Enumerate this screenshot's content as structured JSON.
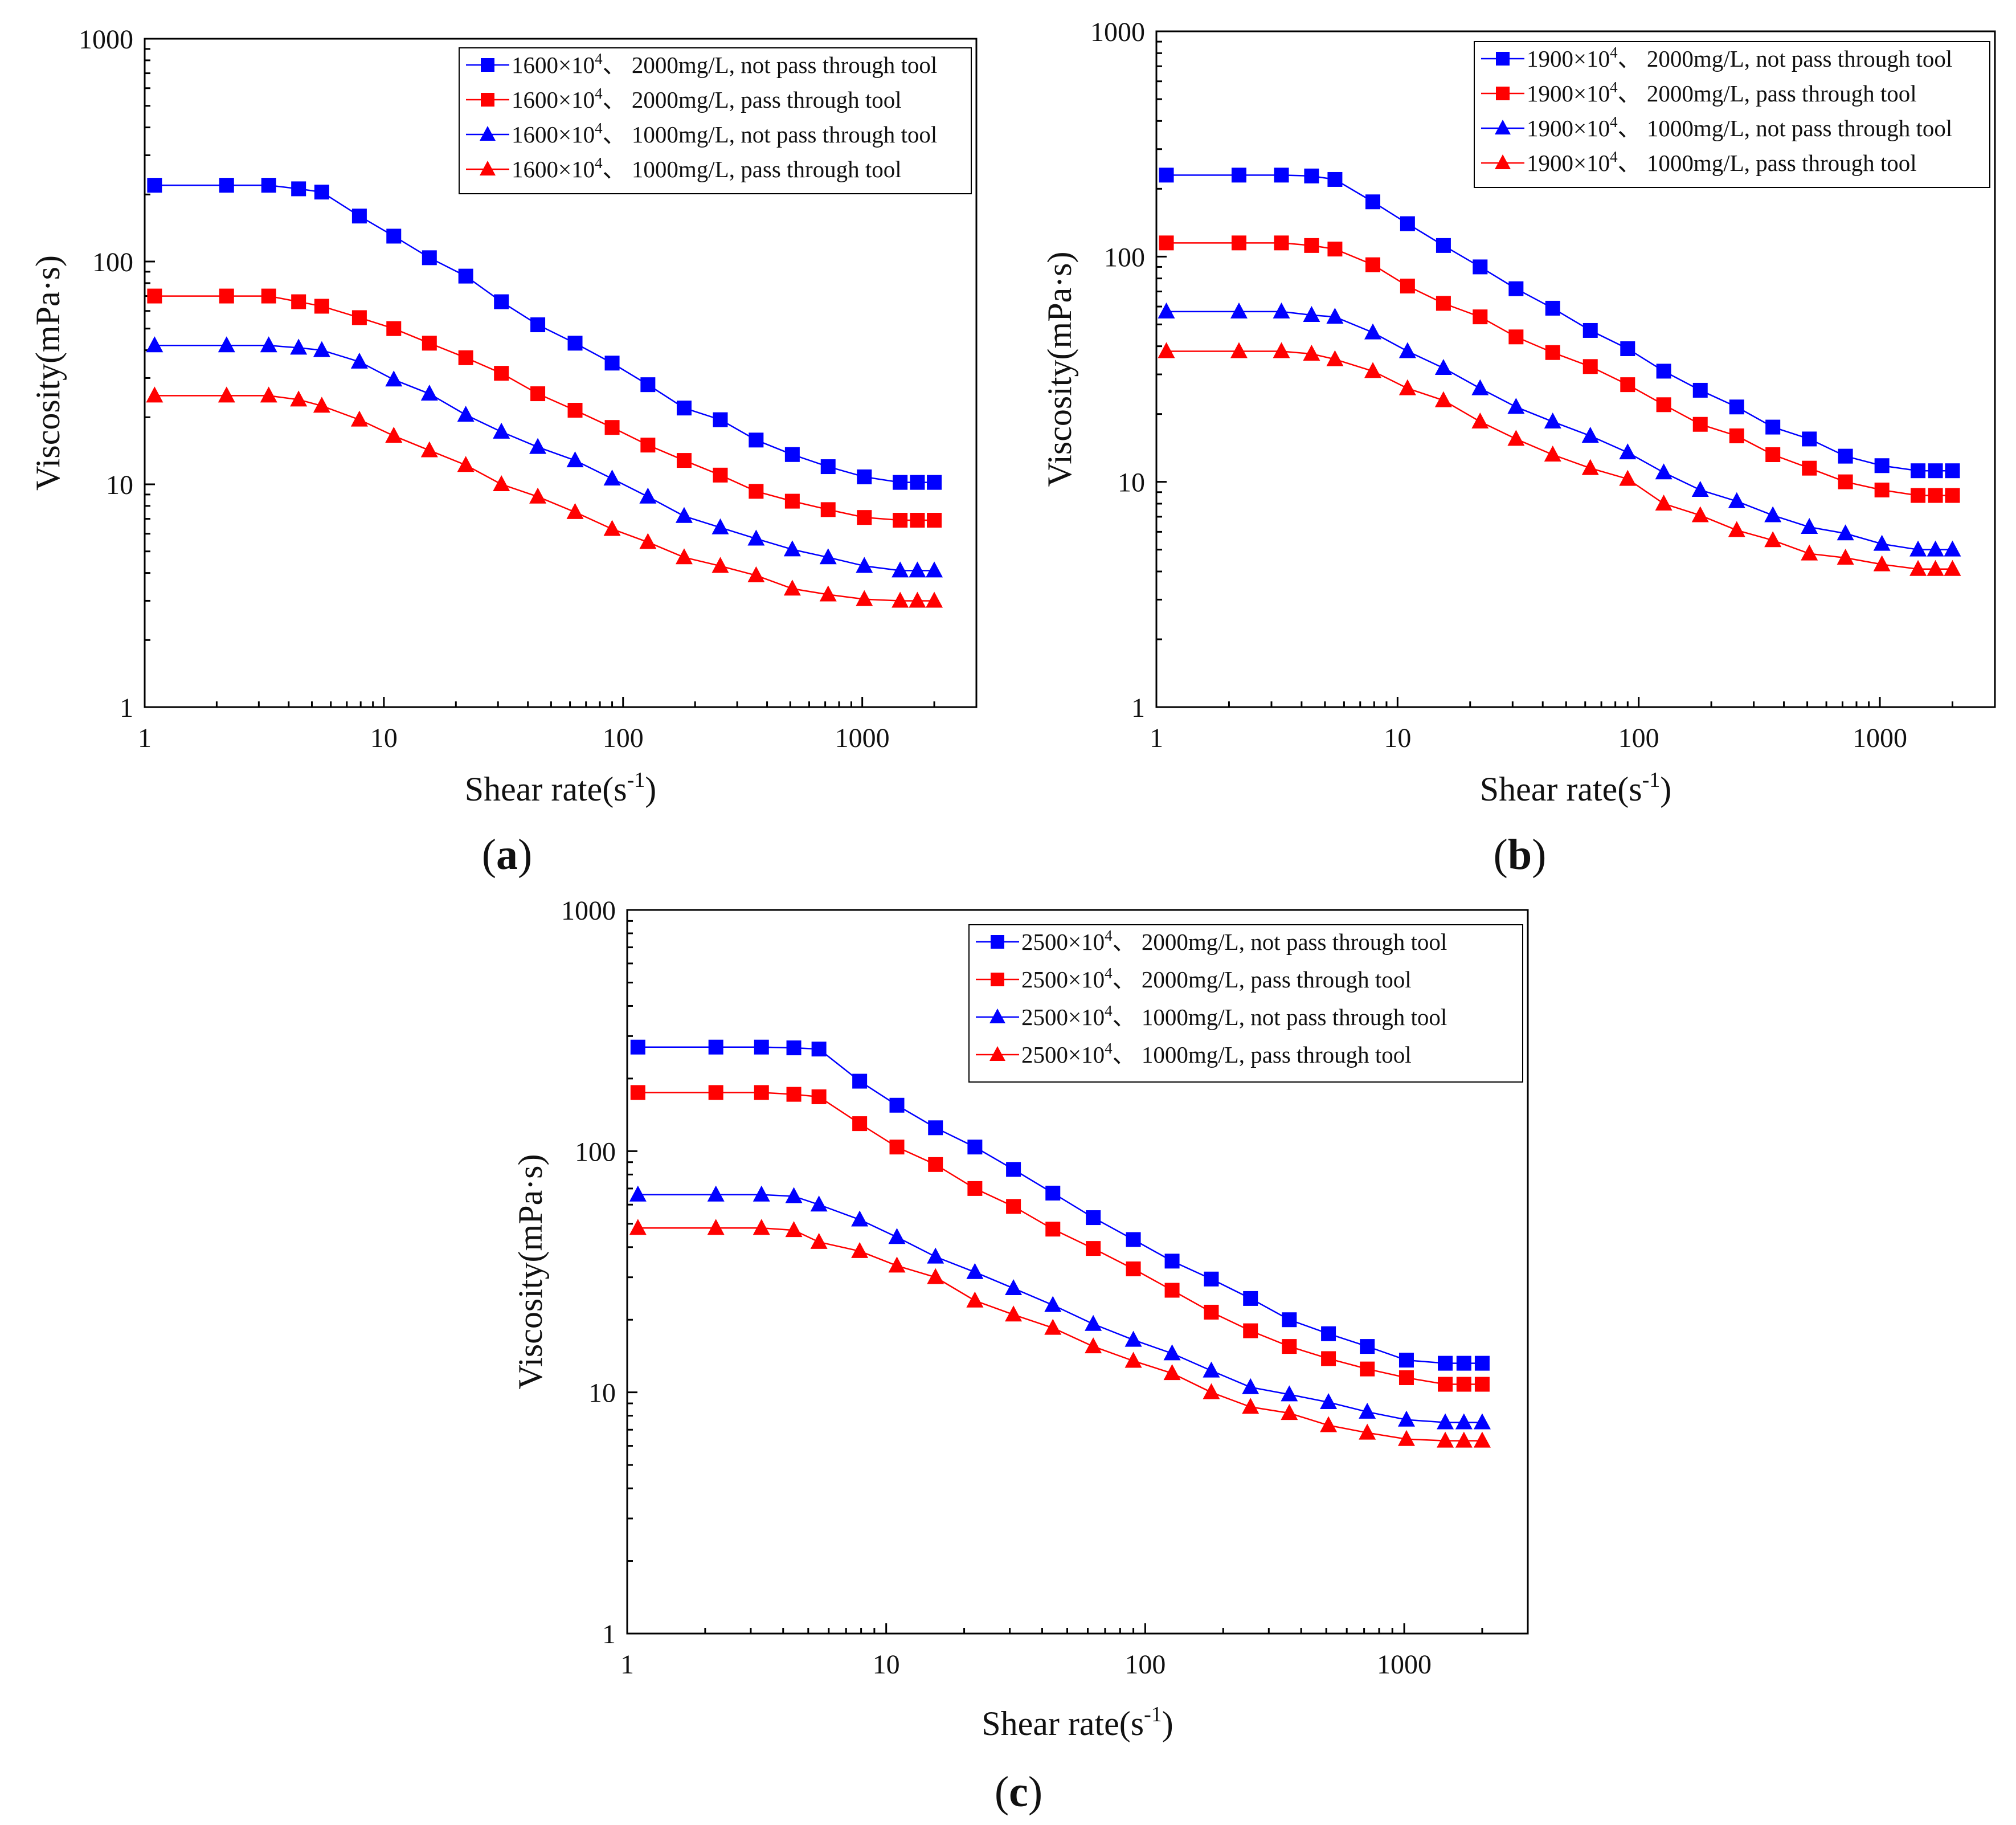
{
  "figure": {
    "panels": [
      {
        "id": "a",
        "label_open": "(",
        "label": "a",
        "label_close": ")",
        "xlabel": "Shear rate(s",
        "xlabel_sup": "-1",
        "xlabel_close": ")",
        "ylabel": "Viscosity(mPa·s)",
        "x_ticks": [
          "1",
          "10",
          "100",
          "1000"
        ],
        "y_ticks": [
          "1",
          "10",
          "100",
          "1000"
        ]
      },
      {
        "id": "b",
        "label_open": "(",
        "label": "b",
        "label_close": ")",
        "xlabel": "Shear rate(s",
        "xlabel_sup": "-1",
        "xlabel_close": ")",
        "ylabel": "Viscosity(mPa·s)",
        "x_ticks": [
          "1",
          "10",
          "100",
          "1000"
        ],
        "y_ticks": [
          "1",
          "10",
          "100",
          "1000"
        ]
      },
      {
        "id": "c",
        "label_open": "(",
        "label": "c",
        "label_close": ")",
        "xlabel": "Shear rate(s",
        "xlabel_sup": "-1",
        "xlabel_close": ")",
        "ylabel": "Viscosity(mPa·s)",
        "x_ticks": [
          "1",
          "10",
          "100",
          "1000"
        ],
        "y_ticks": [
          "1",
          "10",
          "100",
          "1000"
        ]
      }
    ]
  },
  "chart_data": [
    {
      "type": "line",
      "panel": "a",
      "xscale": "log",
      "yscale": "log",
      "xlim": [
        1,
        3000
      ],
      "ylim": [
        1,
        1000
      ],
      "xlabel": "Shear rate(s-1)",
      "ylabel": "Viscosity(mPa·s)",
      "legend_position": "top-right",
      "x": [
        1.1,
        2.2,
        3.3,
        4.4,
        5.5,
        7.9,
        11,
        15.5,
        22,
        31,
        44,
        63,
        90,
        127,
        180,
        255,
        360,
        510,
        720,
        1020,
        1440,
        1700,
        2000
      ],
      "series": [
        {
          "name_pre": "1600×10",
          "name_sup": "4",
          "name_post": "、 2000mg/L, not pass through tool",
          "color": "#0000ff",
          "marker": "square",
          "values": [
            220,
            220,
            220,
            212,
            205,
            160,
            130,
            104,
            86,
            66,
            52,
            43,
            35,
            28,
            22,
            19.5,
            15.8,
            13.6,
            12,
            10.8,
            10.2,
            10.2,
            10.2
          ]
        },
        {
          "name_pre": "1600×10",
          "name_sup": "4",
          "name_post": "、 2000mg/L, pass through tool",
          "color": "#ff0000",
          "marker": "square",
          "values": [
            70,
            70,
            70,
            66,
            63,
            56,
            50,
            43,
            37,
            31.5,
            25.5,
            21.5,
            18,
            15,
            12.8,
            11,
            9.3,
            8.4,
            7.7,
            7.1,
            6.9,
            6.9,
            6.9
          ]
        },
        {
          "name_pre": "1600×10",
          "name_sup": "4",
          "name_post": "、 1000mg/L, not pass through tool",
          "color": "#0000ff",
          "marker": "triangle",
          "values": [
            42,
            42,
            42,
            41,
            40,
            35.5,
            29.5,
            25.5,
            20.5,
            17.2,
            14.7,
            12.8,
            10.6,
            8.8,
            7.2,
            6.4,
            5.7,
            5.1,
            4.7,
            4.3,
            4.1,
            4.1,
            4.1
          ]
        },
        {
          "name_pre": "1600×10",
          "name_sup": "4",
          "name_post": "、 1000mg/L, pass through tool",
          "color": "#ff0000",
          "marker": "triangle",
          "values": [
            25,
            25,
            25,
            24,
            22.5,
            19.5,
            16.5,
            14.2,
            12.2,
            10,
            8.8,
            7.5,
            6.3,
            5.5,
            4.7,
            4.3,
            3.9,
            3.4,
            3.2,
            3.05,
            3.0,
            3.0,
            3.0
          ]
        }
      ]
    },
    {
      "type": "line",
      "panel": "b",
      "xscale": "log",
      "yscale": "log",
      "xlim": [
        1,
        3000
      ],
      "ylim": [
        1,
        1000
      ],
      "xlabel": "Shear rate(s-1)",
      "ylabel": "Viscosity(mPa·s)",
      "legend_position": "top-right",
      "x": [
        1.1,
        2.2,
        3.3,
        4.4,
        5.5,
        7.9,
        11,
        15.5,
        22,
        31,
        44,
        63,
        90,
        127,
        180,
        255,
        360,
        510,
        720,
        1020,
        1440,
        1700,
        2000
      ],
      "series": [
        {
          "name_pre": "1900×10",
          "name_sup": "4",
          "name_post": "、 2000mg/L, not pass through tool",
          "color": "#0000ff",
          "marker": "square",
          "values": [
            230,
            230,
            230,
            228,
            220,
            175,
            140,
            112,
            90,
            72,
            59,
            47,
            39,
            31,
            25.5,
            21.5,
            17.5,
            15.5,
            13,
            11.8,
            11.2,
            11.2,
            11.2
          ]
        },
        {
          "name_pre": "1900×10",
          "name_sup": "4",
          "name_post": "、 2000mg/L, pass through tool",
          "color": "#ff0000",
          "marker": "square",
          "values": [
            115,
            115,
            115,
            112,
            108,
            92,
            74,
            62,
            54,
            44,
            37.5,
            32.5,
            27,
            22,
            18,
            16,
            13.2,
            11.5,
            10,
            9.2,
            8.7,
            8.7,
            8.7
          ]
        },
        {
          "name_pre": "1900×10",
          "name_sup": "4",
          "name_post": "、 1000mg/L, not pass through tool",
          "color": "#0000ff",
          "marker": "triangle",
          "values": [
            57,
            57,
            57,
            55,
            54,
            46,
            38,
            32,
            26,
            21.5,
            18.5,
            16,
            13.5,
            11,
            9.2,
            8.2,
            7.1,
            6.3,
            5.9,
            5.3,
            5.0,
            5.0,
            5.0
          ]
        },
        {
          "name_pre": "1900×10",
          "name_sup": "4",
          "name_post": "、 1000mg/L, pass through tool",
          "color": "#ff0000",
          "marker": "triangle",
          "values": [
            38,
            38,
            38,
            37,
            35,
            31,
            26,
            23,
            18.5,
            15.5,
            13.2,
            11.5,
            10.3,
            8,
            7.1,
            6.1,
            5.5,
            4.8,
            4.6,
            4.3,
            4.1,
            4.1,
            4.1
          ]
        }
      ]
    },
    {
      "type": "line",
      "panel": "c",
      "xscale": "log",
      "yscale": "log",
      "xlim": [
        1,
        3000
      ],
      "ylim": [
        1,
        1000
      ],
      "xlabel": "Shear rate(s-1)",
      "ylabel": "Viscosity(mPa·s)",
      "legend_position": "top-right",
      "x": [
        1.1,
        2.2,
        3.3,
        4.4,
        5.5,
        7.9,
        11,
        15.5,
        22,
        31,
        44,
        63,
        90,
        127,
        180,
        255,
        360,
        510,
        720,
        1020,
        1440,
        1700,
        2000
      ],
      "series": [
        {
          "name_pre": "2500×10",
          "name_sup": "4",
          "name_post": "、 2000mg/L, not pass through tool",
          "color": "#0000ff",
          "marker": "square",
          "values": [
            270,
            270,
            270,
            268,
            265,
            195,
            155,
            125,
            104,
            84,
            67,
            53,
            43,
            35,
            29.5,
            24.5,
            20,
            17.5,
            15.5,
            13.6,
            13.2,
            13.2,
            13.2
          ]
        },
        {
          "name_pre": "2500×10",
          "name_sup": "4",
          "name_post": "、 2000mg/L, pass through tool",
          "color": "#ff0000",
          "marker": "square",
          "values": [
            175,
            175,
            175,
            172,
            168,
            130,
            104,
            88,
            70,
            59,
            47.5,
            39.5,
            32.5,
            26.5,
            21.5,
            18,
            15.5,
            13.8,
            12.5,
            11.5,
            10.8,
            10.8,
            10.8
          ]
        },
        {
          "name_pre": "2500×10",
          "name_sup": "4",
          "name_post": "、 1000mg/L, not pass through tool",
          "color": "#0000ff",
          "marker": "triangle",
          "values": [
            66,
            66,
            66,
            65,
            60,
            52,
            44,
            36.5,
            31.5,
            27,
            23,
            19.2,
            16.5,
            14.5,
            12.3,
            10.5,
            9.8,
            9.1,
            8.3,
            7.7,
            7.5,
            7.5,
            7.5
          ]
        },
        {
          "name_pre": "2500×10",
          "name_sup": "4",
          "name_post": "、 1000mg/L, pass through tool",
          "color": "#ff0000",
          "marker": "triangle",
          "values": [
            48,
            48,
            48,
            47,
            42,
            38.5,
            33.5,
            30,
            24,
            21,
            18.5,
            15.5,
            13.5,
            12,
            10,
            8.7,
            8.2,
            7.3,
            6.8,
            6.4,
            6.3,
            6.3,
            6.3
          ]
        }
      ]
    }
  ]
}
